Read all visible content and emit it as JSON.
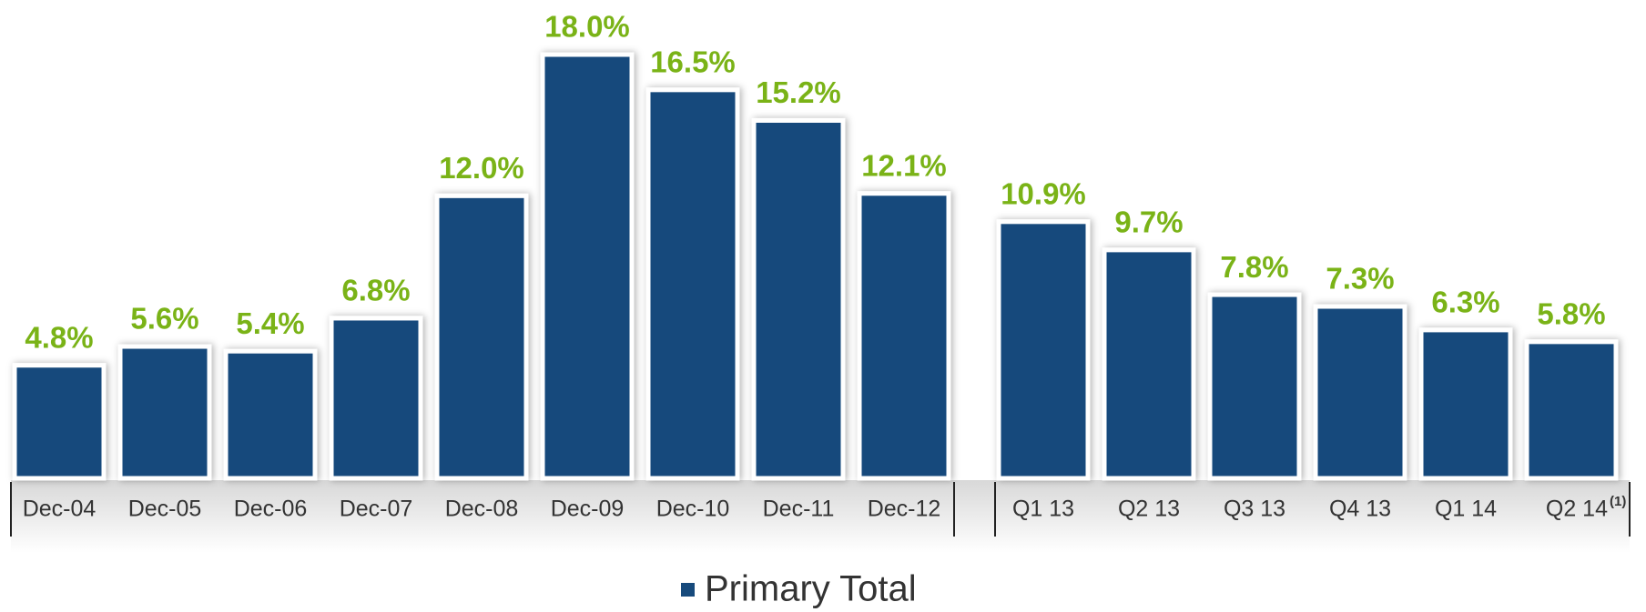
{
  "chart_data": {
    "type": "bar",
    "categories": [
      "Dec-04",
      "Dec-05",
      "Dec-06",
      "Dec-07",
      "Dec-08",
      "Dec-09",
      "Dec-10",
      "Dec-11",
      "Dec-12",
      "Q1 13",
      "Q2 13",
      "Q3 13",
      "Q4 13",
      "Q1 14",
      "Q2 14"
    ],
    "footnote_marker": "(1)",
    "series": [
      {
        "name": "Primary Total",
        "color": "#174a7c",
        "values": [
          4.8,
          5.6,
          5.4,
          6.8,
          12.0,
          18.0,
          16.5,
          15.2,
          12.1,
          10.9,
          9.7,
          7.8,
          7.3,
          6.3,
          5.8
        ],
        "value_labels": [
          "4.8%",
          "5.6%",
          "5.4%",
          "6.8%",
          "12.0%",
          "18.0%",
          "16.5%",
          "15.2%",
          "12.1%",
          "10.9%",
          "9.7%",
          "7.8%",
          "7.3%",
          "6.3%",
          "5.8%"
        ]
      }
    ],
    "label_color": "#7ab317"
  }
}
